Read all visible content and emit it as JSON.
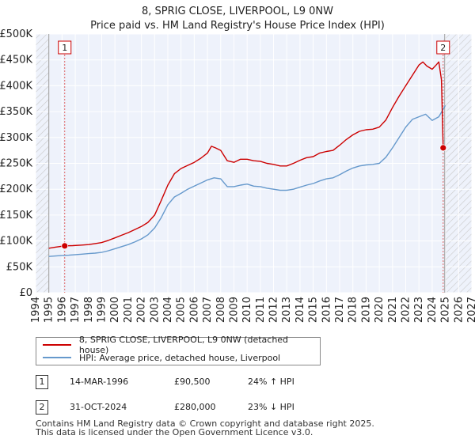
{
  "title": {
    "line1": "8, SPRIG CLOSE, LIVERPOOL, L9 0NW",
    "line2": "Price paid vs. HM Land Registry's House Price Index (HPI)"
  },
  "colors": {
    "property": "#cc0000",
    "hpi": "#6699cc",
    "plot_bg": "#eef2fb",
    "hatch": "#cccccc",
    "grid": "#ffffff"
  },
  "chart_data": {
    "type": "line",
    "title": "Price paid vs. HM Land Registry's House Price Index (HPI)",
    "xlabel": "",
    "ylabel": "",
    "xlim": [
      1994,
      2027
    ],
    "ylim": [
      0,
      500000
    ],
    "y_ticks": [
      {
        "value": 0,
        "label": "£0"
      },
      {
        "value": 50000,
        "label": "£50K"
      },
      {
        "value": 100000,
        "label": "£100K"
      },
      {
        "value": 150000,
        "label": "£150K"
      },
      {
        "value": 200000,
        "label": "£200K"
      },
      {
        "value": 250000,
        "label": "£250K"
      },
      {
        "value": 300000,
        "label": "£300K"
      },
      {
        "value": 350000,
        "label": "£350K"
      },
      {
        "value": 400000,
        "label": "£400K"
      },
      {
        "value": 450000,
        "label": "£450K"
      },
      {
        "value": 500000,
        "label": "£500K"
      }
    ],
    "x_ticks": [
      "1994",
      "1995",
      "1996",
      "1997",
      "1998",
      "1999",
      "2000",
      "2001",
      "2002",
      "2003",
      "2004",
      "2005",
      "2006",
      "2007",
      "2008",
      "2009",
      "2010",
      "2011",
      "2012",
      "2013",
      "2014",
      "2015",
      "2016",
      "2017",
      "2018",
      "2019",
      "2020",
      "2021",
      "2022",
      "2023",
      "2024",
      "2025",
      "2026",
      "2027"
    ],
    "hatched_regions": [
      [
        1994,
        1995.0
      ],
      [
        2024.85,
        2027
      ]
    ],
    "series": [
      {
        "name": "8, SPRIG CLOSE, LIVERPOOL, L9 0NW (detached house)",
        "color": "#cc0000",
        "x": [
          1995.0,
          1995.5,
          1996.2,
          1996.8,
          1997.5,
          1998.0,
          1998.5,
          1999.0,
          1999.5,
          2000.0,
          2000.5,
          2001.0,
          2001.5,
          2002.0,
          2002.5,
          2003.0,
          2003.5,
          2004.0,
          2004.5,
          2005.0,
          2005.5,
          2006.0,
          2006.5,
          2007.0,
          2007.3,
          2007.6,
          2008.0,
          2008.5,
          2009.0,
          2009.5,
          2010.0,
          2010.5,
          2011.0,
          2011.5,
          2012.0,
          2012.5,
          2013.0,
          2013.5,
          2014.0,
          2014.5,
          2015.0,
          2015.5,
          2016.0,
          2016.5,
          2017.0,
          2017.5,
          2018.0,
          2018.5,
          2019.0,
          2019.5,
          2020.0,
          2020.5,
          2021.0,
          2021.5,
          2022.0,
          2022.5,
          2023.0,
          2023.3,
          2023.6,
          2024.0,
          2024.3,
          2024.5,
          2024.7,
          2024.83
        ],
        "values": [
          86000,
          88000,
          90500,
          91000,
          92000,
          93000,
          95000,
          97000,
          101000,
          106000,
          111000,
          116000,
          122000,
          128000,
          136000,
          150000,
          178000,
          208000,
          230000,
          240000,
          246000,
          252000,
          260000,
          270000,
          283000,
          280000,
          275000,
          255000,
          252000,
          258000,
          258000,
          255000,
          254000,
          250000,
          248000,
          245000,
          245000,
          250000,
          256000,
          261000,
          263000,
          270000,
          273000,
          275000,
          285000,
          296000,
          305000,
          312000,
          315000,
          316000,
          320000,
          334000,
          358000,
          380000,
          400000,
          420000,
          440000,
          446000,
          438000,
          432000,
          440000,
          446000,
          412000,
          280000
        ]
      },
      {
        "name": "HPI: Average price, detached house, Liverpool",
        "color": "#6699cc",
        "x": [
          1995.0,
          1995.5,
          1996.0,
          1996.5,
          1997.0,
          1997.5,
          1998.0,
          1998.5,
          1999.0,
          1999.5,
          2000.0,
          2000.5,
          2001.0,
          2001.5,
          2002.0,
          2002.5,
          2003.0,
          2003.5,
          2004.0,
          2004.5,
          2005.0,
          2005.5,
          2006.0,
          2006.5,
          2007.0,
          2007.5,
          2008.0,
          2008.5,
          2009.0,
          2009.5,
          2010.0,
          2010.5,
          2011.0,
          2011.5,
          2012.0,
          2012.5,
          2013.0,
          2013.5,
          2014.0,
          2014.5,
          2015.0,
          2015.5,
          2016.0,
          2016.5,
          2017.0,
          2017.5,
          2018.0,
          2018.5,
          2019.0,
          2019.5,
          2020.0,
          2020.5,
          2021.0,
          2021.5,
          2022.0,
          2022.5,
          2023.0,
          2023.5,
          2024.0,
          2024.5,
          2025.0
        ],
        "values": [
          70000,
          71000,
          72000,
          72500,
          73500,
          74500,
          75500,
          76500,
          78000,
          81000,
          85000,
          89000,
          93000,
          98000,
          104000,
          112000,
          125000,
          145000,
          170000,
          185000,
          192000,
          200000,
          206000,
          212000,
          218000,
          222000,
          220000,
          205000,
          205000,
          208000,
          210000,
          206000,
          205000,
          202000,
          200000,
          198000,
          198000,
          200000,
          204000,
          208000,
          211000,
          216000,
          220000,
          222000,
          228000,
          235000,
          241000,
          245000,
          247000,
          248000,
          250000,
          262000,
          280000,
          300000,
          320000,
          335000,
          340000,
          345000,
          333000,
          340000,
          362000
        ]
      }
    ],
    "annotations": [
      {
        "label": "1",
        "x": 1996.2,
        "value": 90500
      },
      {
        "label": "2",
        "x": 2024.83,
        "value": 280000
      }
    ]
  },
  "legend": {
    "items": [
      {
        "label": "8, SPRIG CLOSE, LIVERPOOL, L9 0NW (detached house)"
      },
      {
        "label": "HPI: Average price, detached house, Liverpool"
      }
    ]
  },
  "transactions": [
    {
      "id": "1",
      "date": "14-MAR-1996",
      "price": "£90,500",
      "hpi_change": "24% ↑ HPI"
    },
    {
      "id": "2",
      "date": "31-OCT-2024",
      "price": "£280,000",
      "hpi_change": "23% ↓ HPI"
    }
  ],
  "footer": {
    "line1": "Contains HM Land Registry data © Crown copyright and database right 2025.",
    "line2": "This data is licensed under the Open Government Licence v3.0."
  }
}
